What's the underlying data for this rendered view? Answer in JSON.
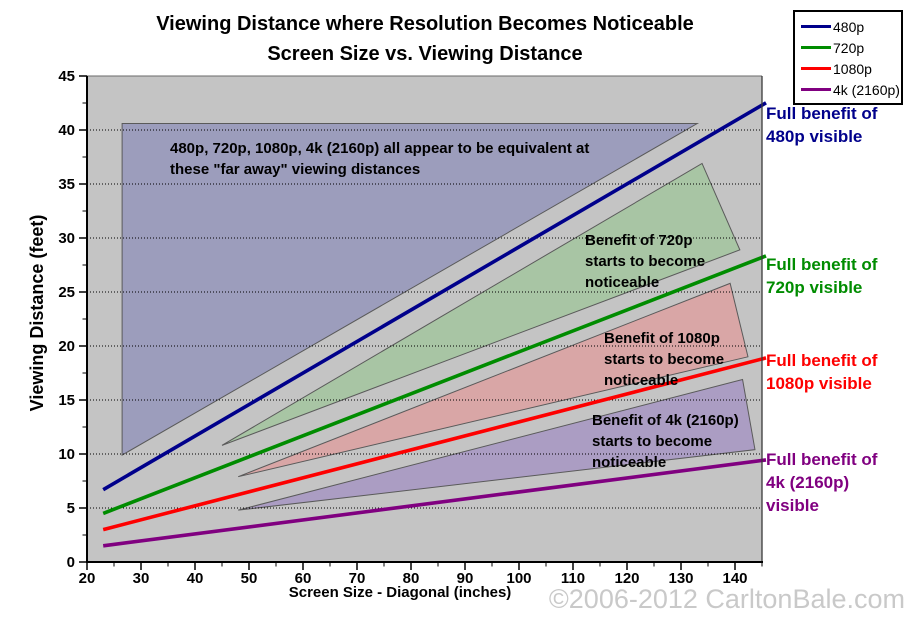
{
  "title": {
    "line1": "Viewing Distance where Resolution Becomes Noticeable",
    "line2": "Screen Size vs. Viewing Distance"
  },
  "watermark": "©2006-2012 CarltonBale.com",
  "legend": {
    "items": [
      {
        "label": "480p",
        "color": "#00008B"
      },
      {
        "label": "720p",
        "color": "#008C00"
      },
      {
        "label": "1080p",
        "color": "#FE0000"
      },
      {
        "label": "4k (2160p)",
        "color": "#800080"
      }
    ]
  },
  "annotations": {
    "equivalent": {
      "lines": [
        "480p, 720p, 1080p, 4k (2160p) all appear to be equivalent at",
        "these \"far away\" viewing distances"
      ]
    },
    "benefit_720p": {
      "lines": [
        "Benefit of 720p",
        "starts to become",
        "noticeable"
      ]
    },
    "benefit_1080p": {
      "lines": [
        "Benefit of 1080p",
        "starts to become",
        "noticeable"
      ]
    },
    "benefit_4k": {
      "lines": [
        "Benefit of 4k (2160p)",
        "starts to become",
        "noticeable"
      ]
    }
  },
  "side_labels": {
    "full_480p": {
      "lines": [
        "Full benefit of",
        "480p visible"
      ],
      "color": "#00008B"
    },
    "full_720p": {
      "lines": [
        "Full benefit of",
        "720p visible"
      ],
      "color": "#008C00"
    },
    "full_1080p": {
      "lines": [
        "Full benefit of",
        "1080p visible"
      ],
      "color": "#FE0000"
    },
    "full_4k": {
      "lines": [
        "Full benefit of",
        "4k (2160p)",
        "visible"
      ],
      "color": "#800080"
    }
  },
  "chart_data": {
    "type": "line",
    "title": "Viewing Distance where Resolution Becomes Noticeable — Screen Size vs. Viewing Distance",
    "xlabel": "Screen Size - Diagonal (inches)",
    "ylabel": "Viewing Distance (feet)",
    "x_range": [
      20,
      145
    ],
    "y_range": [
      0,
      45
    ],
    "x_major_ticks": [
      20,
      30,
      40,
      50,
      60,
      70,
      80,
      90,
      100,
      110,
      120,
      130,
      140
    ],
    "x_minor_step": 5,
    "y_major_ticks": [
      0,
      5,
      10,
      15,
      20,
      25,
      30,
      35,
      40,
      45
    ],
    "y_minor_step": 2.5,
    "grid": "horizontal-dotted",
    "legend_position": "top-right",
    "plot_background": "#C4C4C4",
    "series": [
      {
        "name": "480p",
        "color": "#00008B",
        "points": [
          [
            23,
            6.7
          ],
          [
            145,
            42.3
          ]
        ]
      },
      {
        "name": "720p",
        "color": "#008C00",
        "points": [
          [
            23,
            4.5
          ],
          [
            145,
            28.2
          ]
        ]
      },
      {
        "name": "1080p",
        "color": "#FE0000",
        "points": [
          [
            23,
            3.0
          ],
          [
            145,
            18.8
          ]
        ]
      },
      {
        "name": "4k (2160p)",
        "color": "#800080",
        "points": [
          [
            23,
            1.5
          ],
          [
            145,
            9.4
          ]
        ]
      }
    ],
    "regions": [
      {
        "id": "equivalent-region",
        "fill": "#9C9DBC",
        "stroke": "#5a5a5a",
        "points": [
          [
            26.5,
            40.6
          ],
          [
            133.0,
            40.6
          ],
          [
            26.5,
            9.9
          ]
        ]
      },
      {
        "id": "benefit-720p-region",
        "fill": "#A8C5A4",
        "stroke": "#5a5a5a",
        "points": [
          [
            45.0,
            10.8
          ],
          [
            133.9,
            36.9
          ],
          [
            140.9,
            28.9
          ]
        ]
      },
      {
        "id": "benefit-1080p-region",
        "fill": "#D9A6A6",
        "stroke": "#5a5a5a",
        "points": [
          [
            48.0,
            7.9
          ],
          [
            139.1,
            25.8
          ],
          [
            142.4,
            19.0
          ]
        ]
      },
      {
        "id": "benefit-4k-region",
        "fill": "#AB9DC3",
        "stroke": "#5a5a5a",
        "points": [
          [
            48.0,
            4.8
          ],
          [
            141.4,
            16.9
          ],
          [
            143.7,
            10.4
          ]
        ]
      }
    ]
  }
}
